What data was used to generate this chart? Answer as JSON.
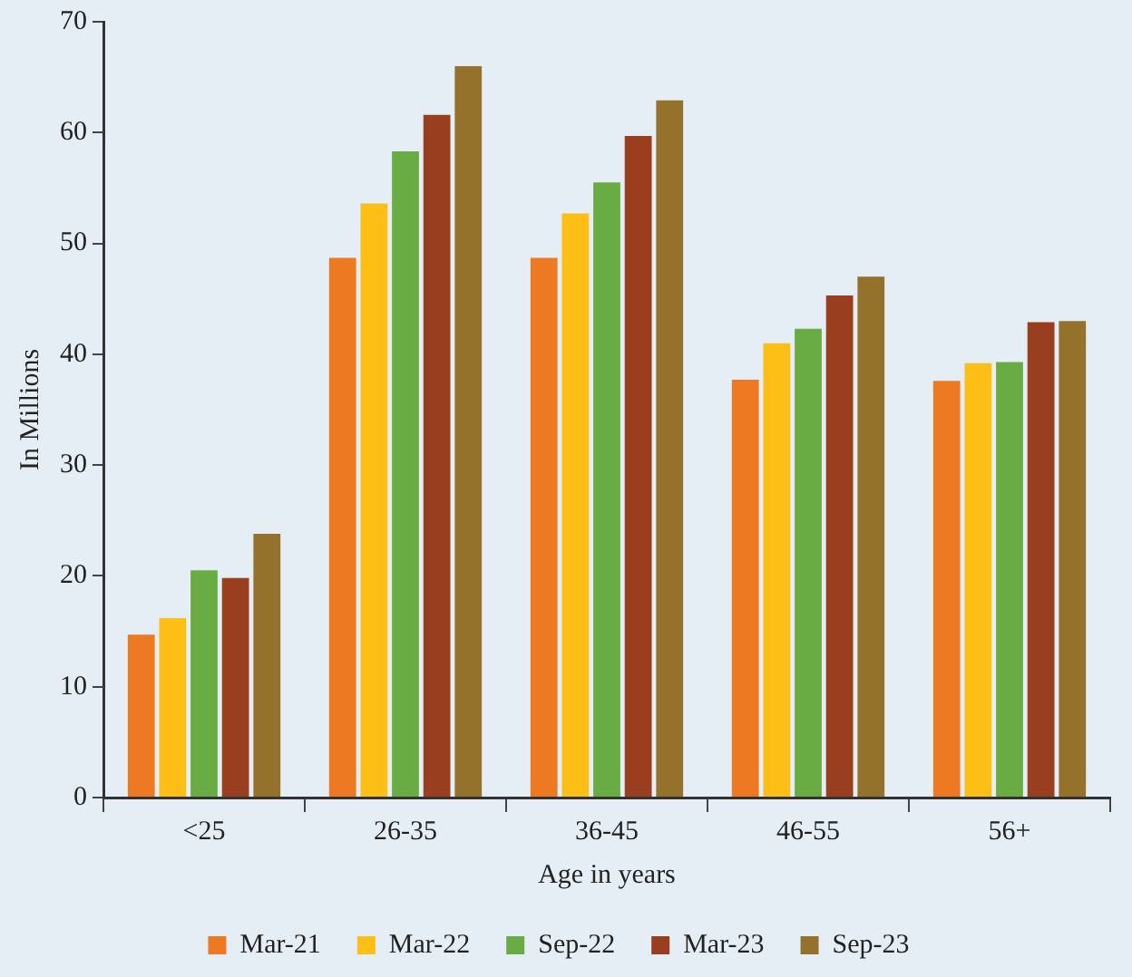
{
  "chart_data": {
    "type": "bar",
    "xlabel": "Age in years",
    "ylabel": "In Millions",
    "categories": [
      "<25",
      "26-35",
      "36-45",
      "46-55",
      "56+"
    ],
    "series": [
      {
        "name": "Mar-21",
        "color": "#ed7a23",
        "values": [
          14.7,
          48.7,
          48.7,
          37.7,
          37.6
        ]
      },
      {
        "name": "Mar-22",
        "color": "#fdbf15",
        "values": [
          16.2,
          53.6,
          52.7,
          41.0,
          39.2
        ]
      },
      {
        "name": "Sep-22",
        "color": "#6aac44",
        "values": [
          20.5,
          58.3,
          55.5,
          42.3,
          39.3
        ]
      },
      {
        "name": "Mar-23",
        "color": "#993f20",
        "values": [
          19.8,
          61.6,
          59.7,
          45.3,
          42.9
        ]
      },
      {
        "name": "Sep-23",
        "color": "#95722c",
        "values": [
          23.8,
          66.0,
          62.9,
          47.0,
          43.0
        ]
      }
    ],
    "ylim": [
      0,
      70
    ],
    "yticks": [
      0,
      10,
      20,
      30,
      40,
      50,
      60,
      70
    ],
    "grid": false,
    "legend": "bottom"
  }
}
